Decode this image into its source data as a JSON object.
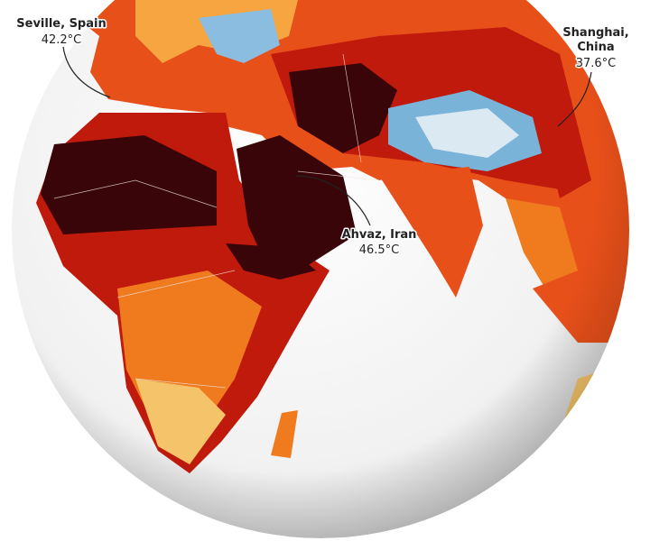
{
  "annotations": [
    {
      "lines": [
        "Seville, Spain"
      ],
      "temperature": "42.2°C"
    },
    {
      "lines": [
        "Shanghai,",
        "China"
      ],
      "temperature": "37.6°C"
    },
    {
      "lines": [
        "Ahvaz, Iran"
      ],
      "temperature": "46.5°C"
    }
  ]
}
